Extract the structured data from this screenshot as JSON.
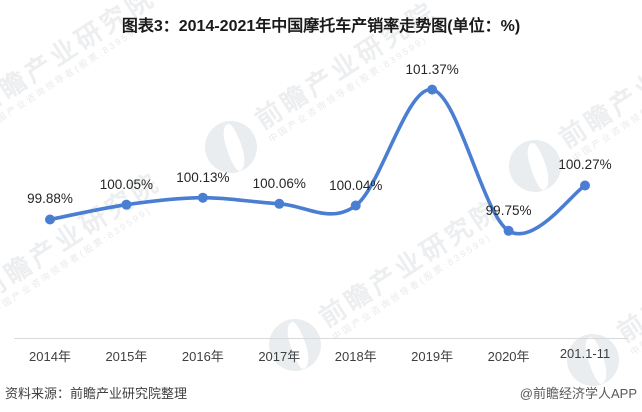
{
  "title": "图表3：2014-2021年中国摩托车产销率走势图(单位：%)",
  "chart_data": {
    "type": "line",
    "categories": [
      "2014年",
      "2015年",
      "2016年",
      "2017年",
      "2018年",
      "2019年",
      "2020年",
      "201.1-11"
    ],
    "values": [
      99.88,
      100.05,
      100.13,
      100.06,
      100.04,
      101.37,
      99.75,
      100.27
    ],
    "data_labels": [
      "99.88%",
      "100.05%",
      "100.13%",
      "100.06%",
      "100.04%",
      "101.37%",
      "99.75%",
      "100.27%"
    ],
    "unit": "%",
    "line_color": "#4a7ed3",
    "marker_color": "#4a7ed3",
    "axis_color": "#d9d9d9",
    "smooth": true,
    "grid": false,
    "legend": "none",
    "y_axis_visible": false,
    "ylim": [
      98.52,
      101.71
    ]
  },
  "footer": {
    "source": "资料来源：前瞻产业研究院整理",
    "brand": "@前瞻经济学人APP"
  },
  "watermark": {
    "big_text": "前瞻产业研究院",
    "small_text": "中国产业咨询领导者(股票:839599)"
  }
}
